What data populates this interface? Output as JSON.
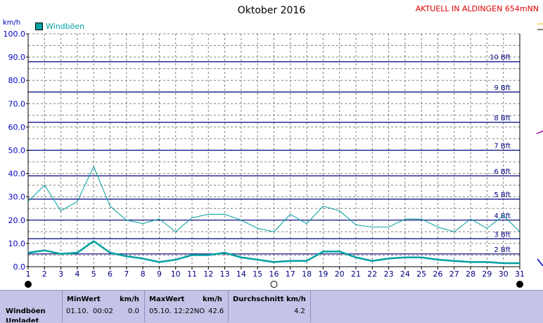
{
  "title": "Oktober 2016",
  "station": "AKTUELL IN ALDINGEN 654mNN",
  "unit_label": "km/h",
  "legend": {
    "label": "Windböen",
    "color": "#00a0a0"
  },
  "chart_data": {
    "type": "line",
    "title": "Oktober 2016",
    "ylabel": "km/h",
    "xlabel": "",
    "ylim": [
      0,
      100
    ],
    "y_ticks": [
      "0.0",
      "10.0",
      "20.0",
      "30.0",
      "40.0",
      "50.0",
      "60.0",
      "70.0",
      "80.0",
      "90.0",
      "100.0"
    ],
    "x": [
      1,
      2,
      3,
      4,
      5,
      6,
      7,
      8,
      9,
      10,
      11,
      12,
      13,
      14,
      15,
      16,
      17,
      18,
      19,
      20,
      21,
      22,
      23,
      24,
      25,
      26,
      27,
      28,
      29,
      30,
      31
    ],
    "series": [
      {
        "name": "Windböen",
        "values": [
          28,
          35,
          24,
          28,
          43,
          26,
          20,
          18.5,
          20.5,
          15,
          21,
          22.5,
          22.5,
          20,
          16.5,
          15,
          22.5,
          18.5,
          26,
          24,
          18,
          17,
          17,
          20.5,
          20.5,
          17,
          15,
          20.5,
          16.5,
          22,
          15
        ],
        "color": "#00a0a0",
        "width": 1
      },
      {
        "name": "",
        "values": [
          6,
          7,
          5.5,
          6,
          11,
          6,
          4.5,
          3.5,
          2,
          3,
          5,
          5,
          6,
          4,
          3,
          2,
          2.5,
          2.5,
          6.5,
          6.5,
          4,
          2.5,
          3.5,
          4,
          4,
          3,
          2.5,
          2,
          2,
          1.5,
          1.5
        ],
        "color": "#00a0a0",
        "width": 2.5
      }
    ],
    "beaufort": [
      {
        "label": "2 Bft",
        "value": 5.5
      },
      {
        "label": "3 Bft",
        "value": 12
      },
      {
        "label": "4 Bft",
        "value": 20
      },
      {
        "label": "5 Bft",
        "value": 29
      },
      {
        "label": "6 Bft",
        "value": 39
      },
      {
        "label": "7 Bft",
        "value": 50
      },
      {
        "label": "8 Bft",
        "value": 62
      },
      {
        "label": "9 Bft",
        "value": 75
      },
      {
        "label": "10 Bft",
        "value": 88
      }
    ],
    "grid": true
  },
  "table": {
    "row_label": "Windböen",
    "row_label_cut": "Umladet",
    "min_header": "MinWert",
    "min_unit": "km/h",
    "min_date": "01.10.",
    "min_time": "00:02",
    "min_value": "0.0",
    "max_header": "MaxWert",
    "max_unit": "km/h",
    "max_datetime": "05.10.  12:22NO",
    "max_value": "42.6",
    "avg_header": "Durchschnitt km/h",
    "avg_value": "4.2"
  }
}
